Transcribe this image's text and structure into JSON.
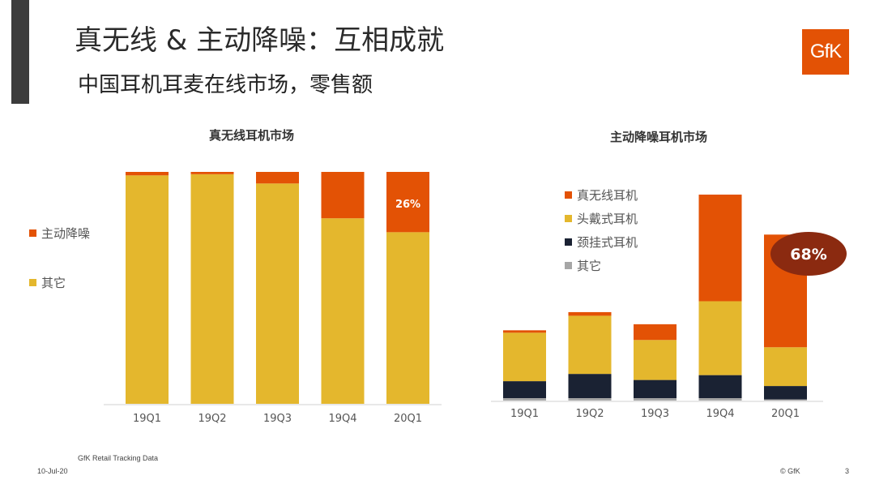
{
  "header": {
    "title": "真无线 & 主动降噪：互相成就",
    "subtitle": "中国耳机耳麦在线市场，零售额",
    "logo_text": "GfK"
  },
  "colors": {
    "orange": "#E35205",
    "yellow": "#E4B72D",
    "navy": "#1A2233",
    "gray": "#A6A6A6",
    "callout": "#8B2A10"
  },
  "chart_data": [
    {
      "type": "bar",
      "stacked": true,
      "normalized": true,
      "title": "真无线耳机市场",
      "categories": [
        "19Q1",
        "19Q2",
        "19Q3",
        "19Q4",
        "20Q1"
      ],
      "series": [
        {
          "name": "其它",
          "values": [
            98.5,
            99,
            95,
            80,
            74
          ],
          "color_key": "yellow"
        },
        {
          "name": "主动降噪",
          "values": [
            1.5,
            1,
            5,
            20,
            26
          ],
          "color_key": "orange"
        }
      ],
      "annotations": [
        {
          "category": "20Q1",
          "text": "26%"
        }
      ],
      "ylim": [
        0,
        100
      ],
      "legend_position": "left",
      "grid": false
    },
    {
      "type": "bar",
      "stacked": true,
      "title": "主动降噪耳机市场",
      "categories": [
        "19Q1",
        "19Q2",
        "19Q3",
        "19Q4",
        "20Q1"
      ],
      "series": [
        {
          "name": "其它",
          "values": [
            1,
            1,
            1,
            1,
            0.5
          ],
          "color_key": "gray"
        },
        {
          "name": "颈挂式耳机",
          "values": [
            7,
            10,
            7.5,
            9.5,
            5.5
          ],
          "color_key": "navy"
        },
        {
          "name": "头戴式耳机",
          "values": [
            20,
            24,
            16.5,
            30.5,
            16
          ],
          "color_key": "yellow"
        },
        {
          "name": "真无线耳机",
          "values": [
            1,
            1.5,
            6.5,
            44,
            46.5
          ],
          "color_key": "orange"
        }
      ],
      "annotations": [
        {
          "category": "20Q1",
          "text": "68%"
        }
      ],
      "ylim": [
        0,
        85
      ],
      "legend_position": "top-left",
      "grid": false
    }
  ],
  "footer": {
    "source": "GfK Retail Tracking Data",
    "date": "10-Jul-20",
    "copyright": "© GfK",
    "page": "3"
  }
}
